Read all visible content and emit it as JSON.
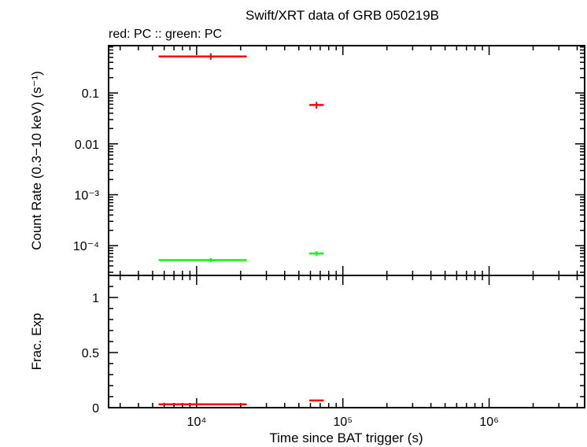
{
  "chart_data": {
    "title": "Swift/XRT data of GRB 050219B",
    "subtitle": "red: PC  :: green: PC",
    "xlabel": "Time since BAT trigger (s)",
    "x_scale": "log",
    "xlim": [
      2500,
      4500000
    ],
    "x_major_ticks": [
      {
        "value": 10000,
        "label": "10⁴"
      },
      {
        "value": 100000,
        "label": "10⁵"
      },
      {
        "value": 1000000,
        "label": "10⁶"
      }
    ],
    "panels": [
      {
        "name": "count-rate",
        "type": "scatter",
        "ylabel": "Count Rate (0.3−10 keV) (s⁻¹)",
        "y_scale": "log",
        "ylim": [
          2.6e-05,
          0.85
        ],
        "y_major_ticks": [
          {
            "value": 0.1,
            "label": "0.1"
          },
          {
            "value": 0.01,
            "label": "0.01"
          },
          {
            "value": 0.001,
            "label": "10⁻³"
          },
          {
            "value": 0.0001,
            "label": "10⁻⁴"
          }
        ],
        "series": [
          {
            "color": "#ff0000",
            "points": [
              {
                "x": 12500,
                "xmin": 5500,
                "xmax": 22000,
                "y": 0.52,
                "ylo": 0.45,
                "yhi": 0.6
              },
              {
                "x": 66000,
                "xmin": 59000,
                "xmax": 74000,
                "y": 0.058,
                "ylo": 0.049,
                "yhi": 0.067
              }
            ]
          },
          {
            "color": "#00ff00",
            "points": [
              {
                "x": 12500,
                "xmin": 5500,
                "xmax": 22000,
                "y": 5.2e-05,
                "ylo": 4.7e-05,
                "yhi": 5.7e-05
              },
              {
                "x": 66000,
                "xmin": 59000,
                "xmax": 74000,
                "y": 7e-05,
                "ylo": 6.3e-05,
                "yhi": 7.8e-05
              }
            ]
          }
        ]
      },
      {
        "name": "fractional-exposure",
        "type": "scatter",
        "ylabel": "Frac. Exp",
        "y_scale": "linear",
        "ylim": [
          0,
          1.2
        ],
        "y_major_ticks": [
          {
            "value": 0,
            "label": "0"
          },
          {
            "value": 0.5,
            "label": "0.5"
          },
          {
            "value": 1,
            "label": "1"
          }
        ],
        "series": [
          {
            "color": "#ff0000",
            "points": [
              {
                "x": 12500,
                "xmin": 5500,
                "xmax": 22000,
                "y": 0.03
              },
              {
                "x": 66000,
                "xmin": 59000,
                "xmax": 74000,
                "y": 0.065
              }
            ]
          }
        ]
      }
    ]
  }
}
